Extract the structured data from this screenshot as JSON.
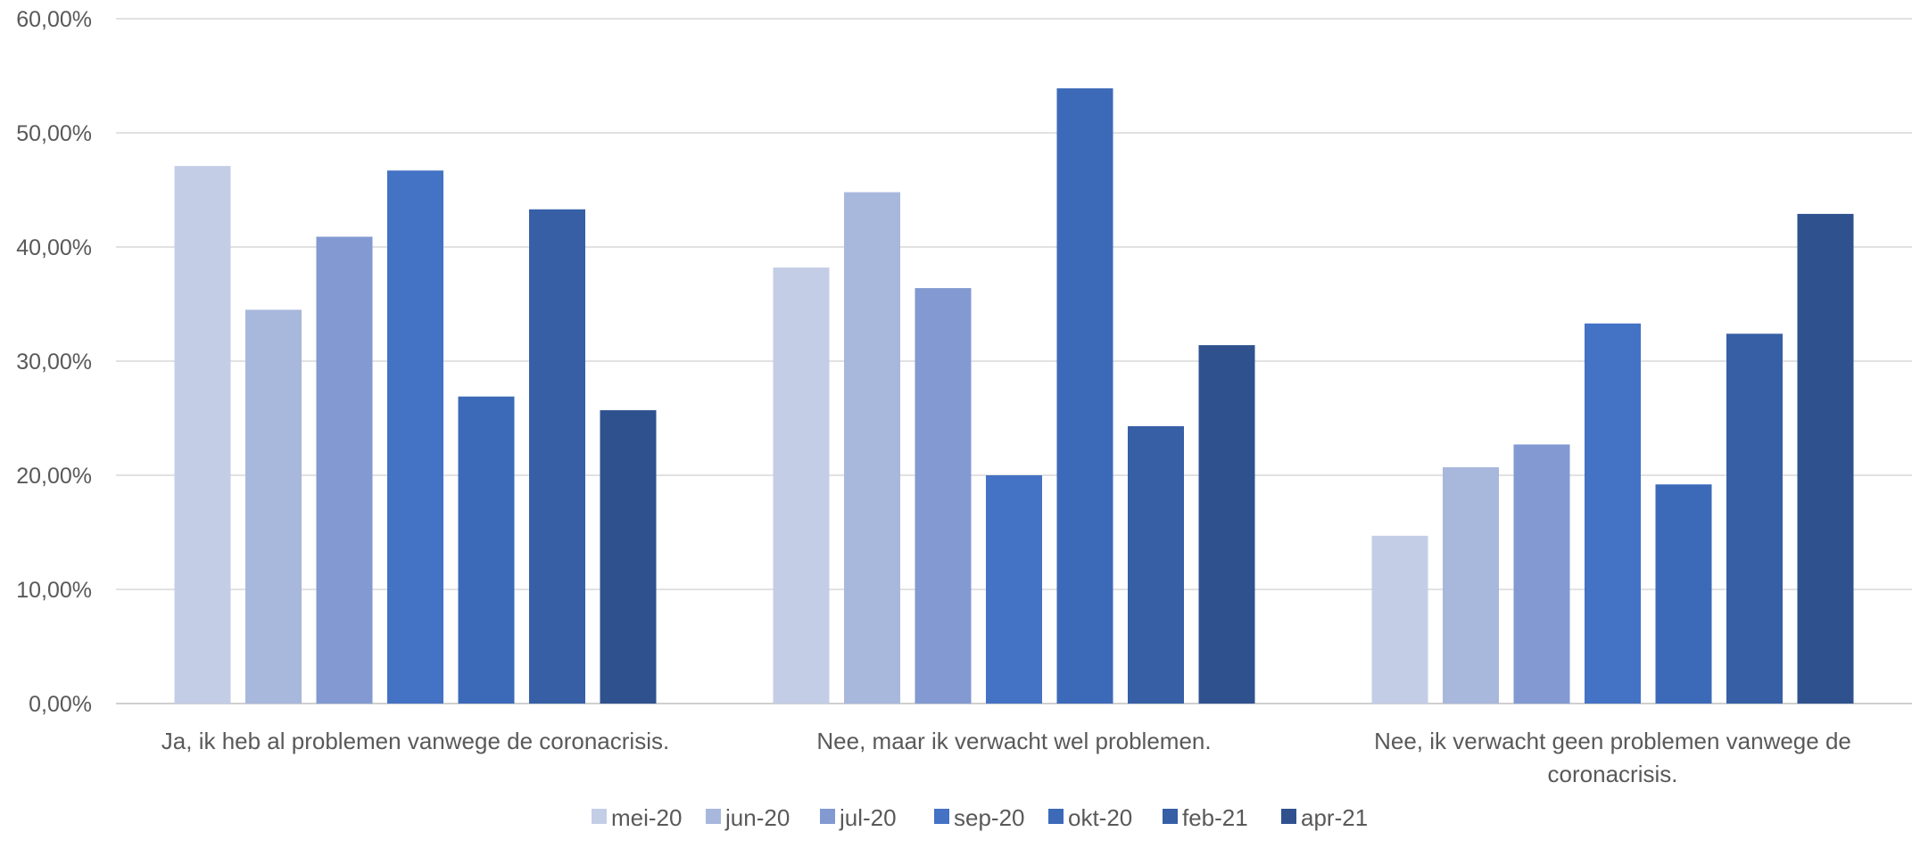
{
  "chart_data": {
    "type": "bar",
    "title": "",
    "xlabel": "",
    "ylabel": "",
    "ylim": [
      0,
      60
    ],
    "yticks": [
      0,
      10,
      20,
      30,
      40,
      50,
      60
    ],
    "ytick_labels": [
      "0,00%",
      "10,00%",
      "20,00%",
      "30,00%",
      "40,00%",
      "50,00%",
      "60,00%"
    ],
    "grid": true,
    "legend_position": "bottom",
    "categories": [
      [
        "Ja, ik heb al problemen vanwege de coronacrisis."
      ],
      [
        "Nee, maar ik verwacht wel problemen."
      ],
      [
        "Nee, ik verwacht geen problemen vanwege de",
        "coronacrisis."
      ]
    ],
    "series": [
      {
        "name": "mei-20",
        "color": "#c3cee6",
        "values": [
          47.1,
          38.2,
          14.7
        ]
      },
      {
        "name": "jun-20",
        "color": "#a8b7dc",
        "values": [
          34.5,
          44.8,
          20.7
        ]
      },
      {
        "name": "jul-20",
        "color": "#8299d1",
        "values": [
          40.9,
          36.4,
          22.7
        ]
      },
      {
        "name": "sep-20",
        "color": "#4472c4",
        "values": [
          46.7,
          20.0,
          33.3
        ]
      },
      {
        "name": "okt-20",
        "color": "#3c6ab8",
        "values": [
          26.9,
          53.9,
          19.2
        ]
      },
      {
        "name": "feb-21",
        "color": "#365fa6",
        "values": [
          43.3,
          24.3,
          32.4
        ]
      },
      {
        "name": "apr-21",
        "color": "#2f528f",
        "values": [
          25.7,
          31.4,
          42.9
        ]
      }
    ]
  }
}
